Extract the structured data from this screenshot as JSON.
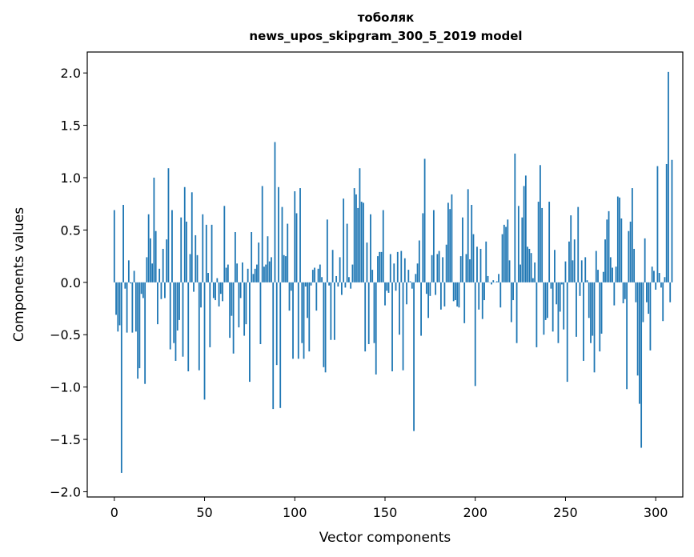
{
  "chart_data": {
    "type": "bar",
    "title_line1": "тоболяк",
    "title_line2": "news_upos_skipgram_300_5_2019 model",
    "xlabel": "Vector components",
    "ylabel": "Components values",
    "xlim": [
      -15,
      315
    ],
    "ylim": [
      -2.05,
      2.2
    ],
    "xticks": [
      0,
      50,
      100,
      150,
      200,
      250,
      300
    ],
    "yticks": [
      -2.0,
      -1.5,
      -1.0,
      -0.5,
      0.0,
      0.5,
      1.0,
      1.5,
      2.0
    ],
    "ytick_labels": [
      "−2.0",
      "−1.5",
      "−1.0",
      "−0.5",
      "0.0",
      "0.5",
      "1.0",
      "1.5",
      "2.0"
    ],
    "bar_color": "#1f77b4",
    "values": [
      0.69,
      -0.31,
      -0.47,
      -0.41,
      -1.82,
      0.74,
      -0.06,
      -0.48,
      0.21,
      -0.01,
      -0.48,
      0.11,
      -0.47,
      -0.92,
      -0.82,
      -0.11,
      -0.15,
      -0.97,
      0.24,
      0.65,
      0.42,
      0.18,
      1.0,
      0.49,
      -0.4,
      0.13,
      -0.16,
      0.32,
      -0.15,
      0.41,
      1.09,
      -0.64,
      0.69,
      -0.58,
      -0.75,
      -0.46,
      -0.36,
      0.62,
      -0.71,
      0.91,
      0.58,
      -0.85,
      0.27,
      0.86,
      -0.09,
      0.45,
      0.26,
      -0.84,
      -0.24,
      0.65,
      -1.12,
      0.55,
      0.09,
      -0.62,
      0.55,
      -0.15,
      -0.17,
      0.04,
      -0.23,
      -0.11,
      -0.18,
      0.73,
      0.14,
      0.17,
      -0.53,
      -0.32,
      -0.68,
      0.48,
      0.18,
      -0.43,
      -0.15,
      0.19,
      -0.51,
      -0.4,
      0.13,
      -0.95,
      0.48,
      0.08,
      0.13,
      0.17,
      0.38,
      -0.59,
      0.92,
      0.15,
      0.17,
      0.44,
      0.2,
      0.24,
      -1.21,
      1.34,
      -0.79,
      0.91,
      -1.2,
      0.72,
      0.26,
      0.25,
      0.56,
      -0.27,
      -0.08,
      -0.73,
      0.87,
      0.66,
      -0.73,
      0.9,
      -0.58,
      -0.73,
      -0.04,
      -0.34,
      -0.66,
      -0.03,
      0.12,
      0.14,
      -0.27,
      0.13,
      0.17,
      0.05,
      -0.81,
      -0.86,
      0.6,
      -0.03,
      -0.55,
      0.31,
      -0.55,
      0.06,
      -0.04,
      0.24,
      -0.12,
      0.8,
      -0.05,
      0.56,
      0.05,
      -0.06,
      0.17,
      0.9,
      0.84,
      0.71,
      1.09,
      0.77,
      0.76,
      -0.66,
      0.38,
      -0.59,
      0.65,
      0.12,
      -0.58,
      -0.88,
      0.25,
      0.29,
      0.29,
      0.69,
      -0.22,
      -0.08,
      -0.1,
      0.27,
      -0.85,
      0.18,
      -0.08,
      0.29,
      -0.5,
      0.3,
      -0.84,
      0.23,
      -0.21,
      0.12,
      0.01,
      -0.06,
      -1.42,
      0.08,
      0.18,
      0.4,
      -0.51,
      0.66,
      1.18,
      -0.11,
      -0.34,
      -0.13,
      0.26,
      0.69,
      -0.12,
      0.27,
      0.3,
      -0.26,
      0.24,
      -0.23,
      0.36,
      0.76,
      0.7,
      0.84,
      -0.18,
      -0.17,
      -0.23,
      -0.24,
      0.25,
      0.62,
      -0.39,
      0.27,
      0.89,
      0.22,
      0.74,
      0.46,
      -0.99,
      0.34,
      -0.26,
      0.32,
      -0.35,
      -0.17,
      0.39,
      0.06,
      0.0,
      -0.02,
      0.02,
      0.0,
      0.01,
      0.08,
      -0.24,
      0.46,
      0.55,
      0.53,
      0.6,
      0.21,
      -0.38,
      -0.17,
      1.23,
      -0.58,
      0.73,
      0.17,
      0.62,
      0.92,
      1.02,
      0.34,
      0.32,
      0.28,
      0.04,
      0.19,
      -0.62,
      0.77,
      1.12,
      0.71,
      -0.5,
      -0.36,
      -0.34,
      0.77,
      -0.06,
      -0.47,
      0.31,
      -0.21,
      -0.58,
      -0.28,
      -0.02,
      -0.45,
      0.2,
      -0.95,
      0.39,
      0.64,
      0.21,
      0.41,
      -0.52,
      0.72,
      -0.13,
      0.21,
      -0.75,
      0.24,
      0.02,
      -0.34,
      -0.58,
      -0.51,
      -0.86,
      0.3,
      0.12,
      -0.66,
      -0.49,
      0.1,
      0.41,
      0.6,
      0.68,
      0.24,
      0.14,
      -0.22,
      0.15,
      0.82,
      0.81,
      0.61,
      -0.2,
      -0.16,
      -1.02,
      0.49,
      0.58,
      0.9,
      0.32,
      -0.19,
      -0.89,
      -1.16,
      -1.58,
      -0.38,
      0.42,
      -0.19,
      -0.3,
      -0.65,
      0.15,
      0.11,
      -0.07,
      1.11,
      0.09,
      -0.05,
      -0.37,
      0.05,
      1.13,
      2.01,
      -0.19,
      1.17
    ]
  }
}
